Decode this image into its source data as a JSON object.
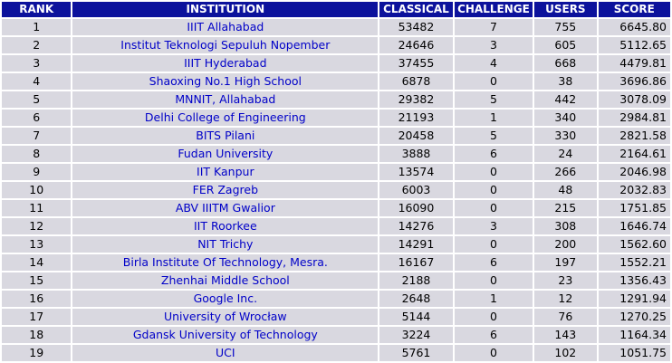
{
  "table": {
    "headers": {
      "rank": "RANK",
      "institution": "INSTITUTION",
      "classical": "CLASSICAL",
      "challenge": "CHALLENGE",
      "users": "USERS",
      "score": "SCORE"
    },
    "colors": {
      "header_bg": "#0c129c",
      "header_text": "#ffffff",
      "row_bg": "#d9d8e0",
      "link": "#0000c8"
    },
    "rows": [
      {
        "rank": "1",
        "institution": "IIIT Allahabad",
        "classical": "53482",
        "challenge": "7",
        "users": "755",
        "score": "6645.80"
      },
      {
        "rank": "2",
        "institution": "Institut Teknologi Sepuluh Nopember",
        "classical": "24646",
        "challenge": "3",
        "users": "605",
        "score": "5112.65"
      },
      {
        "rank": "3",
        "institution": "IIIT Hyderabad",
        "classical": "37455",
        "challenge": "4",
        "users": "668",
        "score": "4479.81"
      },
      {
        "rank": "4",
        "institution": "Shaoxing No.1 High School",
        "classical": "6878",
        "challenge": "0",
        "users": "38",
        "score": "3696.86"
      },
      {
        "rank": "5",
        "institution": "MNNIT, Allahabad",
        "classical": "29382",
        "challenge": "5",
        "users": "442",
        "score": "3078.09"
      },
      {
        "rank": "6",
        "institution": "Delhi College of Engineering",
        "classical": "21193",
        "challenge": "1",
        "users": "340",
        "score": "2984.81"
      },
      {
        "rank": "7",
        "institution": "BITS Pilani",
        "classical": "20458",
        "challenge": "5",
        "users": "330",
        "score": "2821.58"
      },
      {
        "rank": "8",
        "institution": "Fudan University",
        "classical": "3888",
        "challenge": "6",
        "users": "24",
        "score": "2164.61"
      },
      {
        "rank": "9",
        "institution": "IIT Kanpur",
        "classical": "13574",
        "challenge": "0",
        "users": "266",
        "score": "2046.98"
      },
      {
        "rank": "10",
        "institution": "FER Zagreb",
        "classical": "6003",
        "challenge": "0",
        "users": "48",
        "score": "2032.83"
      },
      {
        "rank": "11",
        "institution": "ABV IIITM Gwalior",
        "classical": "16090",
        "challenge": "0",
        "users": "215",
        "score": "1751.85"
      },
      {
        "rank": "12",
        "institution": "IIT Roorkee",
        "classical": "14276",
        "challenge": "3",
        "users": "308",
        "score": "1646.74"
      },
      {
        "rank": "13",
        "institution": "NIT Trichy",
        "classical": "14291",
        "challenge": "0",
        "users": "200",
        "score": "1562.60"
      },
      {
        "rank": "14",
        "institution": "Birla Institute Of Technology, Mesra.",
        "classical": "16167",
        "challenge": "6",
        "users": "197",
        "score": "1552.21"
      },
      {
        "rank": "15",
        "institution": "Zhenhai Middle School",
        "classical": "2188",
        "challenge": "0",
        "users": "23",
        "score": "1356.43"
      },
      {
        "rank": "16",
        "institution": "Google Inc.",
        "classical": "2648",
        "challenge": "1",
        "users": "12",
        "score": "1291.94"
      },
      {
        "rank": "17",
        "institution": "University of Wrocław",
        "classical": "5144",
        "challenge": "0",
        "users": "76",
        "score": "1270.25"
      },
      {
        "rank": "18",
        "institution": "Gdansk University of Technology",
        "classical": "3224",
        "challenge": "6",
        "users": "143",
        "score": "1164.34"
      },
      {
        "rank": "19",
        "institution": "UCI",
        "classical": "5761",
        "challenge": "0",
        "users": "102",
        "score": "1051.75"
      }
    ]
  }
}
